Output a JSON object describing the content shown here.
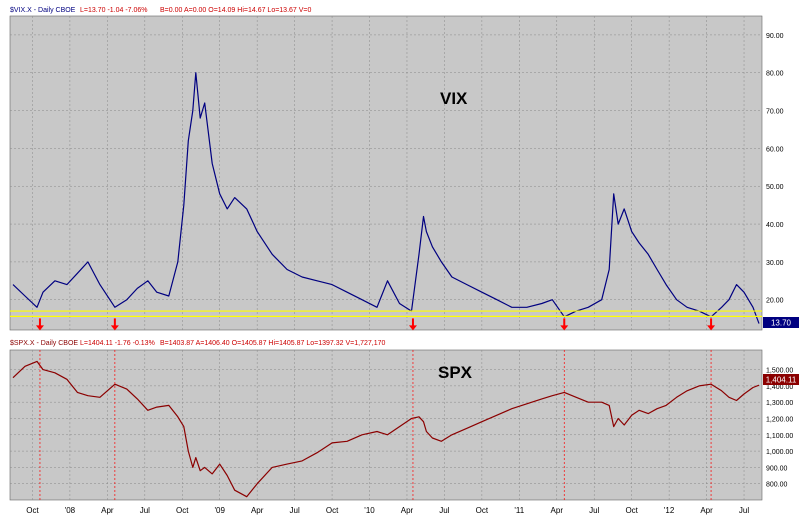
{
  "chart_data": [
    {
      "type": "line",
      "name_label": "VIX",
      "header": {
        "symbol": "$VIX.X - Daily CBOE",
        "last": "L=13.70  -1.04  -7.06%",
        "extra": "B=0.00  A=0.00  O=14.09  Hi=14.67  Lo=13.67  V=0"
      },
      "yticks": [
        "90.00",
        "80.00",
        "70.00",
        "60.00",
        "50.00",
        "40.00",
        "30.00",
        "20.00"
      ],
      "ylim": [
        12,
        95
      ],
      "last_value_badge": "13.70",
      "support_lines": [
        15.6,
        17.0
      ],
      "arrow_dates": [
        2007.8,
        2008.3,
        2010.29,
        2011.3,
        2012.28
      ],
      "x": [
        2007.62,
        2007.7,
        2007.78,
        2007.82,
        2007.9,
        2007.98,
        2008.05,
        2008.12,
        2008.2,
        2008.3,
        2008.38,
        2008.45,
        2008.52,
        2008.58,
        2008.66,
        2008.72,
        2008.76,
        2008.79,
        2008.82,
        2008.84,
        2008.87,
        2008.9,
        2008.95,
        2009.0,
        2009.05,
        2009.1,
        2009.18,
        2009.25,
        2009.35,
        2009.45,
        2009.55,
        2009.65,
        2009.75,
        2009.85,
        2009.95,
        2010.05,
        2010.12,
        2010.2,
        2010.28,
        2010.33,
        2010.36,
        2010.38,
        2010.42,
        2010.48,
        2010.55,
        2010.65,
        2010.75,
        2010.85,
        2010.95,
        2011.05,
        2011.15,
        2011.22,
        2011.3,
        2011.38,
        2011.46,
        2011.55,
        2011.6,
        2011.63,
        2011.66,
        2011.7,
        2011.75,
        2011.8,
        2011.86,
        2011.92,
        2011.98,
        2012.05,
        2012.12,
        2012.2,
        2012.28,
        2012.35,
        2012.4,
        2012.45,
        2012.5,
        2012.56,
        2012.6
      ],
      "values": [
        24.0,
        21.0,
        18.0,
        22.0,
        25.0,
        24.0,
        27.0,
        30.0,
        24.0,
        18.0,
        20.0,
        23.0,
        25.0,
        22.0,
        21.0,
        30.0,
        45.0,
        62.0,
        70.0,
        80.0,
        68.0,
        72.0,
        56.0,
        48.0,
        44.0,
        47.0,
        44.0,
        38.0,
        32.0,
        28.0,
        26.0,
        25.0,
        24.0,
        22.0,
        20.0,
        18.0,
        25.0,
        19.0,
        17.0,
        32.0,
        42.0,
        38.0,
        34.0,
        30.0,
        26.0,
        24.0,
        22.0,
        20.0,
        18.0,
        18.0,
        19.0,
        20.0,
        15.5,
        17.0,
        18.0,
        20.0,
        28.0,
        48.0,
        40.0,
        44.0,
        38.0,
        35.0,
        32.0,
        28.0,
        24.0,
        20.0,
        18.0,
        17.0,
        15.5,
        18.0,
        20.0,
        24.0,
        22.0,
        18.0,
        13.7
      ]
    },
    {
      "type": "line",
      "name_label": "SPX",
      "header": {
        "symbol": "$SPX.X - Daily CBOE",
        "last": "L=1404.11  -1.76  -0.13%",
        "extra": "B=1403.87  A=1406.40  O=1405.87  Hi=1405.87  Lo=1397.32  V=1,727,170"
      },
      "yticks": [
        "1,500.00",
        "1,400.00",
        "1,300.00",
        "1,200.00",
        "1,100.00",
        "1,000.00",
        "900.00",
        "800.00"
      ],
      "ylim": [
        700,
        1620
      ],
      "last_value_badge": "1,404.11",
      "x": [
        2007.62,
        2007.7,
        2007.78,
        2007.82,
        2007.9,
        2007.98,
        2008.05,
        2008.12,
        2008.2,
        2008.3,
        2008.38,
        2008.45,
        2008.52,
        2008.58,
        2008.66,
        2008.72,
        2008.76,
        2008.79,
        2008.82,
        2008.84,
        2008.87,
        2008.9,
        2008.95,
        2009.0,
        2009.05,
        2009.1,
        2009.18,
        2009.25,
        2009.35,
        2009.45,
        2009.55,
        2009.65,
        2009.75,
        2009.85,
        2009.95,
        2010.05,
        2010.12,
        2010.2,
        2010.28,
        2010.33,
        2010.36,
        2010.38,
        2010.42,
        2010.48,
        2010.55,
        2010.65,
        2010.75,
        2010.85,
        2010.95,
        2011.05,
        2011.15,
        2011.22,
        2011.3,
        2011.38,
        2011.46,
        2011.55,
        2011.6,
        2011.63,
        2011.66,
        2011.7,
        2011.75,
        2011.8,
        2011.86,
        2011.92,
        2011.98,
        2012.05,
        2012.12,
        2012.2,
        2012.28,
        2012.35,
        2012.4,
        2012.45,
        2012.5,
        2012.56,
        2012.6
      ],
      "values": [
        1450,
        1520,
        1550,
        1500,
        1480,
        1440,
        1360,
        1340,
        1330,
        1410,
        1380,
        1320,
        1250,
        1270,
        1280,
        1210,
        1150,
        1000,
        900,
        960,
        880,
        900,
        860,
        920,
        850,
        760,
        720,
        800,
        900,
        920,
        940,
        990,
        1050,
        1060,
        1100,
        1120,
        1100,
        1150,
        1200,
        1210,
        1180,
        1120,
        1080,
        1060,
        1100,
        1140,
        1180,
        1220,
        1260,
        1290,
        1320,
        1340,
        1360,
        1330,
        1300,
        1300,
        1280,
        1150,
        1200,
        1160,
        1220,
        1250,
        1230,
        1260,
        1280,
        1330,
        1370,
        1400,
        1410,
        1370,
        1330,
        1310,
        1350,
        1390,
        1404
      ]
    }
  ],
  "x_axis": {
    "range": [
      2007.6,
      2012.62
    ],
    "ticks": [
      {
        "label": "Oct",
        "x": 2007.75
      },
      {
        "label": "'08",
        "x": 2008.0
      },
      {
        "label": "Apr",
        "x": 2008.25
      },
      {
        "label": "Jul",
        "x": 2008.5
      },
      {
        "label": "Oct",
        "x": 2008.75
      },
      {
        "label": "'09",
        "x": 2009.0
      },
      {
        "label": "Apr",
        "x": 2009.25
      },
      {
        "label": "Jul",
        "x": 2009.5
      },
      {
        "label": "Oct",
        "x": 2009.75
      },
      {
        "label": "'10",
        "x": 2010.0
      },
      {
        "label": "Apr",
        "x": 2010.25
      },
      {
        "label": "Jul",
        "x": 2010.5
      },
      {
        "label": "Oct",
        "x": 2010.75
      },
      {
        "label": "'11",
        "x": 2011.0
      },
      {
        "label": "Apr",
        "x": 2011.25
      },
      {
        "label": "Jul",
        "x": 2011.5
      },
      {
        "label": "Oct",
        "x": 2011.75
      },
      {
        "label": "'12",
        "x": 2012.0
      },
      {
        "label": "Apr",
        "x": 2012.25
      },
      {
        "label": "Jul",
        "x": 2012.5
      }
    ]
  },
  "colors": {
    "panel_bg": "#c8c8c8",
    "vix_line": "#000080",
    "spx_line": "#8b0000",
    "support_line": "#ffff00",
    "arrow": "#ff0000",
    "grid": "#888888"
  }
}
